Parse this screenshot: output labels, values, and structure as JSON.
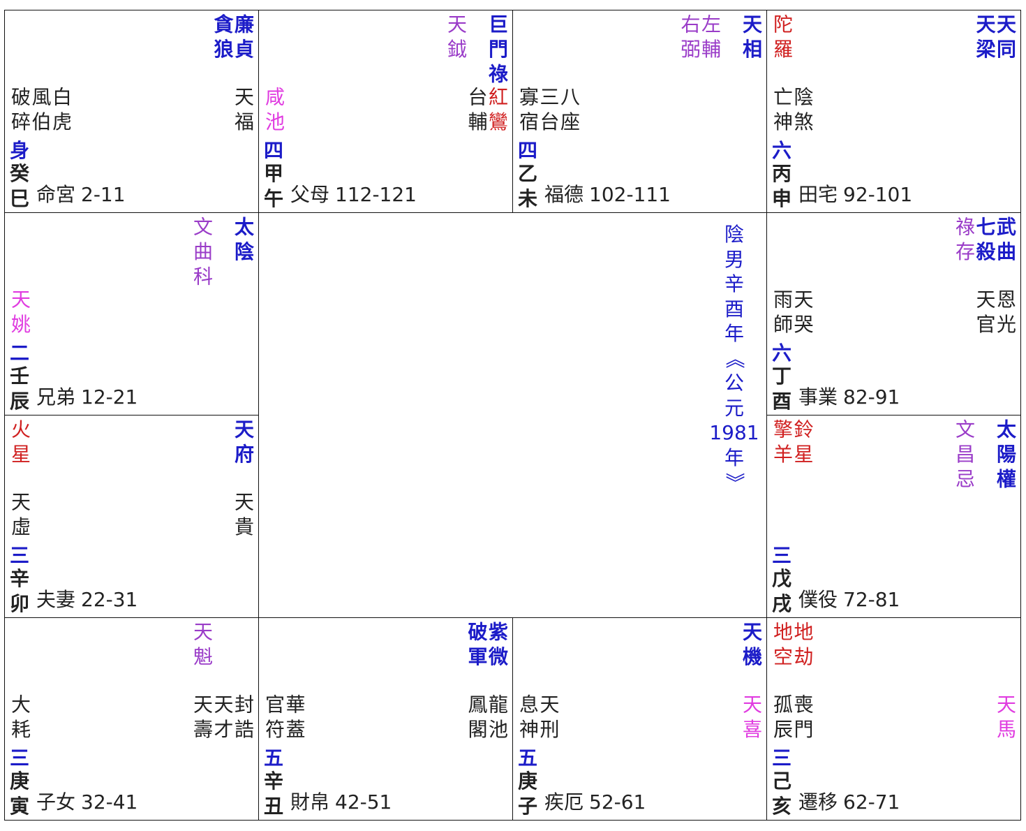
{
  "center_text": "陰男辛酉年《公元1981年》",
  "palaces": [
    {
      "main": [
        {
          "text": "廉貞",
          "color": "#1c1cc8"
        },
        {
          "text": "貪狼",
          "color": "#1c1cc8"
        }
      ],
      "minor_left": [
        {
          "text": "破碎",
          "color": "#222222"
        },
        {
          "text": "風伯",
          "color": "#222222"
        },
        {
          "text": "白虎",
          "color": "#222222"
        }
      ],
      "minor_right": [
        {
          "text": "天福",
          "color": "#222222"
        }
      ],
      "marker": "身",
      "stem": "癸",
      "branch": "巳",
      "name": "命宮",
      "ages": "2-11"
    },
    {
      "main": [
        {
          "text": "巨門祿",
          "color": "#1c1cc8"
        }
      ],
      "aux": [
        {
          "text": "天鉞",
          "color": "#9a3cc8"
        }
      ],
      "minor_left": [
        {
          "text": "咸池",
          "color": "#e03ce0"
        }
      ],
      "minor_right": [
        {
          "text": "台輔",
          "color": "#222222"
        },
        {
          "text": "紅鸞",
          "color": "#d02020"
        }
      ],
      "marker": "四",
      "stem": "甲",
      "branch": "午",
      "name": "父母",
      "ages": "112-121"
    },
    {
      "main": [
        {
          "text": "天相",
          "color": "#1c1cc8"
        }
      ],
      "aux": [
        {
          "text": "左輔",
          "color": "#9a3cc8"
        },
        {
          "text": "右弼",
          "color": "#9a3cc8"
        }
      ],
      "minor_left": [
        {
          "text": "寡宿",
          "color": "#222222"
        },
        {
          "text": "三台",
          "color": "#222222"
        },
        {
          "text": "八座",
          "color": "#222222"
        }
      ],
      "marker": "四",
      "stem": "乙",
      "branch": "未",
      "name": "福德",
      "ages": "102-111"
    },
    {
      "main": [
        {
          "text": "天同",
          "color": "#1c1cc8"
        },
        {
          "text": "天梁",
          "color": "#1c1cc8"
        }
      ],
      "left": [
        {
          "text": "陀羅",
          "color": "#d02020"
        }
      ],
      "minor_left": [
        {
          "text": "亡神",
          "color": "#222222"
        },
        {
          "text": "陰煞",
          "color": "#222222"
        }
      ],
      "marker": "六",
      "stem": "丙",
      "branch": "申",
      "name": "田宅",
      "ages": "92-101"
    },
    {
      "main": [
        {
          "text": "太陰",
          "color": "#1c1cc8"
        }
      ],
      "aux": [
        {
          "text": "文曲科",
          "color": "#9a3cc8"
        }
      ],
      "minor_left": [
        {
          "text": "天姚",
          "color": "#e03ce0"
        }
      ],
      "marker": "二",
      "stem": "壬",
      "branch": "辰",
      "name": "兄弟",
      "ages": "12-21"
    },
    {
      "main": [
        {
          "text": "武曲",
          "color": "#1c1cc8"
        },
        {
          "text": "七殺",
          "color": "#1c1cc8"
        }
      ],
      "aux": [
        {
          "text": "祿存",
          "color": "#9a3cc8"
        }
      ],
      "minor_left": [
        {
          "text": "雨師",
          "color": "#222222"
        },
        {
          "text": "天哭",
          "color": "#222222"
        }
      ],
      "minor_right": [
        {
          "text": "天官",
          "color": "#222222"
        },
        {
          "text": "恩光",
          "color": "#222222"
        }
      ],
      "marker": "六",
      "stem": "丁",
      "branch": "酉",
      "name": "事業",
      "ages": "82-91"
    },
    {
      "main": [
        {
          "text": "天府",
          "color": "#1c1cc8"
        }
      ],
      "left": [
        {
          "text": "火星",
          "color": "#d02020"
        }
      ],
      "minor_left": [
        {
          "text": "天虛",
          "color": "#222222"
        }
      ],
      "minor_right": [
        {
          "text": "天貴",
          "color": "#222222"
        }
      ],
      "marker": "三",
      "stem": "辛",
      "branch": "卯",
      "name": "夫妻",
      "ages": "22-31"
    },
    {
      "main": [
        {
          "text": "太陽權",
          "color": "#1c1cc8"
        }
      ],
      "aux": [
        {
          "text": "文昌忌",
          "color": "#9a3cc8"
        }
      ],
      "left": [
        {
          "text": "擎羊",
          "color": "#d02020"
        },
        {
          "text": "鈴星",
          "color": "#d02020"
        }
      ],
      "marker": "三",
      "stem": "戊",
      "branch": "戌",
      "name": "僕役",
      "ages": "72-81"
    },
    {
      "aux": [
        {
          "text": "天魁",
          "color": "#9a3cc8"
        }
      ],
      "minor_left": [
        {
          "text": "大耗",
          "color": "#222222"
        }
      ],
      "minor_right": [
        {
          "text": "天壽",
          "color": "#222222"
        },
        {
          "text": "天才",
          "color": "#222222"
        },
        {
          "text": "封誥",
          "color": "#222222"
        }
      ],
      "marker": "三",
      "stem": "庚",
      "branch": "寅",
      "name": "子女",
      "ages": "32-41"
    },
    {
      "main": [
        {
          "text": "紫微",
          "color": "#1c1cc8"
        },
        {
          "text": "破軍",
          "color": "#1c1cc8"
        }
      ],
      "minor_left": [
        {
          "text": "官符",
          "color": "#222222"
        },
        {
          "text": "華蓋",
          "color": "#222222"
        }
      ],
      "minor_right": [
        {
          "text": "鳳閣",
          "color": "#222222"
        },
        {
          "text": "龍池",
          "color": "#222222"
        }
      ],
      "marker": "五",
      "stem": "辛",
      "branch": "丑",
      "name": "財帛",
      "ages": "42-51"
    },
    {
      "main": [
        {
          "text": "天機",
          "color": "#1c1cc8"
        }
      ],
      "minor_left": [
        {
          "text": "息神",
          "color": "#222222"
        },
        {
          "text": "天刑",
          "color": "#222222"
        }
      ],
      "minor_right": [
        {
          "text": "天喜",
          "color": "#e03ce0"
        }
      ],
      "marker": "五",
      "stem": "庚",
      "branch": "子",
      "name": "疾厄",
      "ages": "52-61"
    },
    {
      "left": [
        {
          "text": "地空",
          "color": "#d02020"
        },
        {
          "text": "地劫",
          "color": "#d02020"
        }
      ],
      "minor_left": [
        {
          "text": "孤辰",
          "color": "#222222"
        },
        {
          "text": "喪門",
          "color": "#222222"
        }
      ],
      "minor_right": [
        {
          "text": "天馬",
          "color": "#e03ce0"
        }
      ],
      "marker": "三",
      "stem": "己",
      "branch": "亥",
      "name": "遷移",
      "ages": "62-71"
    }
  ]
}
